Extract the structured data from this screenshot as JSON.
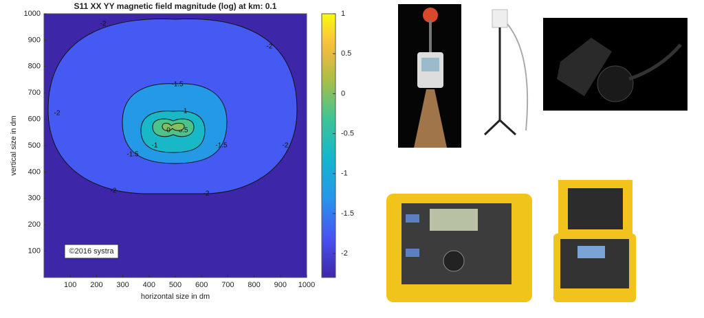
{
  "chart_data": {
    "type": "contour",
    "title": "S11 XX YY magnetic field magnitude (log) at km: 0.1",
    "xlabel": "horizontal size in dm",
    "ylabel": "vertical size in dm",
    "xlim": [
      0,
      1000
    ],
    "xticks": [
      100,
      200,
      300,
      400,
      500,
      600,
      700,
      800,
      900,
      1000
    ],
    "ylim": [
      0,
      1000
    ],
    "yticks": [
      100,
      200,
      300,
      400,
      500,
      600,
      700,
      800,
      900,
      1000
    ],
    "clim": [
      -2.3,
      1
    ],
    "cticks": [
      -2,
      -1.5,
      -1,
      -0.5,
      0,
      0.5,
      1
    ],
    "levels": [
      -2,
      -1.5,
      -1,
      -0.5,
      0
    ],
    "colormap": "parula",
    "annotation": "©2016 systra"
  }
}
